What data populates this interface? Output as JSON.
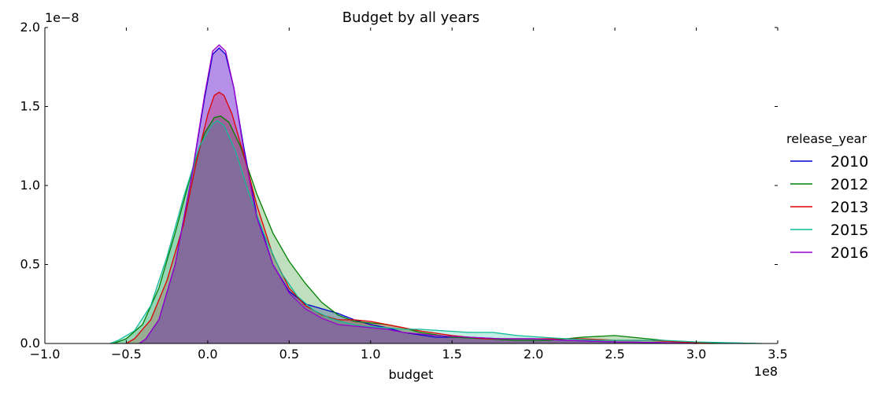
{
  "chart_data": {
    "type": "area",
    "title": "Budget by all years",
    "xlabel": "budget",
    "ylabel": "",
    "x_offset_text": "1e8",
    "y_offset_text": "1e−8",
    "xlim": [
      -1.0,
      3.5
    ],
    "ylim": [
      0.0,
      2.0
    ],
    "x_ticks": [
      "−1.0",
      "−0.5",
      "0.0",
      "0.5",
      "1.0",
      "1.5",
      "2.0",
      "2.5",
      "3.0",
      "3.5"
    ],
    "y_ticks": [
      "0.0",
      "0.5",
      "1.0",
      "1.5",
      "2.0"
    ],
    "grid": false,
    "legend": {
      "title": "release_year",
      "placement": "right"
    },
    "series": [
      {
        "name": "2010",
        "color": "#0000cc",
        "points": [
          [
            -0.42,
            0.0
          ],
          [
            -0.38,
            0.03
          ],
          [
            -0.3,
            0.15
          ],
          [
            -0.2,
            0.5
          ],
          [
            -0.1,
            1.05
          ],
          [
            -0.02,
            1.55
          ],
          [
            0.03,
            1.83
          ],
          [
            0.07,
            1.87
          ],
          [
            0.11,
            1.83
          ],
          [
            0.16,
            1.62
          ],
          [
            0.22,
            1.25
          ],
          [
            0.3,
            0.82
          ],
          [
            0.4,
            0.5
          ],
          [
            0.5,
            0.33
          ],
          [
            0.6,
            0.25
          ],
          [
            0.7,
            0.22
          ],
          [
            0.8,
            0.19
          ],
          [
            0.9,
            0.15
          ],
          [
            1.0,
            0.12
          ],
          [
            1.1,
            0.1
          ],
          [
            1.2,
            0.07
          ],
          [
            1.4,
            0.04
          ],
          [
            1.6,
            0.04
          ],
          [
            1.8,
            0.03
          ],
          [
            2.0,
            0.03
          ],
          [
            2.2,
            0.02
          ],
          [
            2.5,
            0.01
          ],
          [
            2.8,
            0.005
          ],
          [
            3.0,
            0.0
          ]
        ]
      },
      {
        "name": "2012",
        "color": "#008000",
        "points": [
          [
            -0.58,
            0.0
          ],
          [
            -0.5,
            0.03
          ],
          [
            -0.4,
            0.12
          ],
          [
            -0.3,
            0.35
          ],
          [
            -0.2,
            0.7
          ],
          [
            -0.1,
            1.08
          ],
          [
            -0.02,
            1.33
          ],
          [
            0.04,
            1.43
          ],
          [
            0.08,
            1.44
          ],
          [
            0.13,
            1.4
          ],
          [
            0.2,
            1.25
          ],
          [
            0.3,
            0.95
          ],
          [
            0.4,
            0.7
          ],
          [
            0.5,
            0.52
          ],
          [
            0.6,
            0.38
          ],
          [
            0.7,
            0.26
          ],
          [
            0.8,
            0.18
          ],
          [
            0.9,
            0.14
          ],
          [
            1.0,
            0.13
          ],
          [
            1.1,
            0.12
          ],
          [
            1.2,
            0.1
          ],
          [
            1.3,
            0.07
          ],
          [
            1.5,
            0.04
          ],
          [
            1.7,
            0.03
          ],
          [
            1.9,
            0.02
          ],
          [
            2.1,
            0.02
          ],
          [
            2.3,
            0.04
          ],
          [
            2.5,
            0.05
          ],
          [
            2.7,
            0.03
          ],
          [
            2.9,
            0.01
          ],
          [
            3.1,
            0.005
          ],
          [
            3.3,
            0.0
          ]
        ]
      },
      {
        "name": "2013",
        "color": "#dd0000",
        "points": [
          [
            -0.5,
            0.0
          ],
          [
            -0.45,
            0.03
          ],
          [
            -0.35,
            0.15
          ],
          [
            -0.25,
            0.4
          ],
          [
            -0.15,
            0.75
          ],
          [
            -0.07,
            1.15
          ],
          [
            0.0,
            1.45
          ],
          [
            0.04,
            1.57
          ],
          [
            0.07,
            1.59
          ],
          [
            0.1,
            1.57
          ],
          [
            0.15,
            1.45
          ],
          [
            0.22,
            1.2
          ],
          [
            0.3,
            0.88
          ],
          [
            0.4,
            0.56
          ],
          [
            0.5,
            0.35
          ],
          [
            0.6,
            0.24
          ],
          [
            0.7,
            0.18
          ],
          [
            0.8,
            0.15
          ],
          [
            0.9,
            0.15
          ],
          [
            1.0,
            0.14
          ],
          [
            1.1,
            0.12
          ],
          [
            1.2,
            0.1
          ],
          [
            1.3,
            0.08
          ],
          [
            1.5,
            0.05
          ],
          [
            1.7,
            0.03
          ],
          [
            1.9,
            0.03
          ],
          [
            2.1,
            0.03
          ],
          [
            2.3,
            0.03
          ],
          [
            2.5,
            0.02
          ],
          [
            2.7,
            0.02
          ],
          [
            2.9,
            0.01
          ],
          [
            3.1,
            0.0
          ]
        ]
      },
      {
        "name": "2015",
        "color": "#11bb99",
        "points": [
          [
            -0.6,
            0.0
          ],
          [
            -0.55,
            0.02
          ],
          [
            -0.45,
            0.08
          ],
          [
            -0.35,
            0.24
          ],
          [
            -0.25,
            0.55
          ],
          [
            -0.15,
            0.92
          ],
          [
            -0.05,
            1.25
          ],
          [
            0.03,
            1.39
          ],
          [
            0.06,
            1.41
          ],
          [
            0.1,
            1.38
          ],
          [
            0.17,
            1.22
          ],
          [
            0.25,
            0.96
          ],
          [
            0.35,
            0.68
          ],
          [
            0.45,
            0.45
          ],
          [
            0.55,
            0.3
          ],
          [
            0.65,
            0.21
          ],
          [
            0.75,
            0.16
          ],
          [
            0.85,
            0.13
          ],
          [
            0.95,
            0.11
          ],
          [
            1.1,
            0.1
          ],
          [
            1.2,
            0.09
          ],
          [
            1.3,
            0.09
          ],
          [
            1.45,
            0.08
          ],
          [
            1.6,
            0.07
          ],
          [
            1.75,
            0.07
          ],
          [
            1.9,
            0.05
          ],
          [
            2.05,
            0.04
          ],
          [
            2.2,
            0.03
          ],
          [
            2.4,
            0.02
          ],
          [
            2.6,
            0.02
          ],
          [
            2.8,
            0.02
          ],
          [
            3.0,
            0.01
          ],
          [
            3.2,
            0.005
          ],
          [
            3.4,
            0.0
          ]
        ]
      },
      {
        "name": "2016",
        "color": "#9900cc",
        "points": [
          [
            -0.42,
            0.0
          ],
          [
            -0.38,
            0.03
          ],
          [
            -0.3,
            0.15
          ],
          [
            -0.2,
            0.5
          ],
          [
            -0.1,
            1.05
          ],
          [
            -0.02,
            1.57
          ],
          [
            0.03,
            1.85
          ],
          [
            0.07,
            1.89
          ],
          [
            0.11,
            1.85
          ],
          [
            0.16,
            1.62
          ],
          [
            0.22,
            1.23
          ],
          [
            0.3,
            0.8
          ],
          [
            0.4,
            0.5
          ],
          [
            0.5,
            0.32
          ],
          [
            0.6,
            0.22
          ],
          [
            0.7,
            0.16
          ],
          [
            0.8,
            0.12
          ],
          [
            0.9,
            0.11
          ],
          [
            1.0,
            0.1
          ],
          [
            1.1,
            0.09
          ],
          [
            1.2,
            0.07
          ],
          [
            1.4,
            0.05
          ],
          [
            1.6,
            0.04
          ],
          [
            1.8,
            0.03
          ],
          [
            2.0,
            0.03
          ],
          [
            2.2,
            0.02
          ],
          [
            2.5,
            0.01
          ],
          [
            2.8,
            0.005
          ],
          [
            3.0,
            0.0
          ]
        ]
      }
    ]
  }
}
